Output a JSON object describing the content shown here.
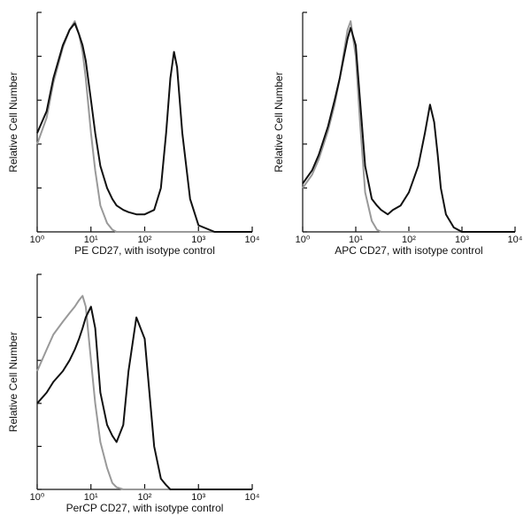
{
  "chart_data": [
    {
      "type": "line",
      "xlabel": "PE  CD27,  with isotype control",
      "ylabel": "Relative Cell Number",
      "xscale": "log",
      "x": [
        1,
        1.5,
        2,
        3,
        4,
        5,
        6,
        7,
        8,
        10,
        12,
        15,
        20,
        25,
        30,
        40,
        50,
        70,
        100,
        150,
        200,
        250,
        300,
        350,
        400,
        500,
        700,
        1000,
        2000,
        5000,
        10000
      ],
      "series": [
        {
          "color": "#999999",
          "values": [
            40,
            52,
            68,
            84,
            92,
            96,
            90,
            82,
            70,
            45,
            28,
            12,
            4,
            1,
            0,
            0,
            0,
            0,
            0,
            0,
            0,
            0,
            0,
            0,
            0,
            0,
            0,
            0,
            0,
            0,
            0
          ]
        },
        {
          "color": "#111111",
          "values": [
            45,
            55,
            70,
            85,
            92,
            95,
            90,
            85,
            78,
            60,
            45,
            30,
            20,
            15,
            12,
            10,
            9,
            8,
            8,
            10,
            20,
            45,
            70,
            82,
            75,
            45,
            15,
            3,
            0,
            0,
            0
          ]
        }
      ],
      "xlim": [
        1,
        10000
      ],
      "ylim": [
        0,
        100
      ],
      "xticks": [
        {
          "value": 1,
          "label": "10⁰"
        },
        {
          "value": 10,
          "label": "10¹"
        },
        {
          "value": 100,
          "label": "10²"
        },
        {
          "value": 1000,
          "label": "10³"
        },
        {
          "value": 10000,
          "label": "10⁴"
        }
      ],
      "yticks": [
        0,
        20,
        40,
        60,
        80,
        100
      ]
    },
    {
      "type": "line",
      "xlabel": "APC CD27, with isotype control",
      "ylabel": "Relative Cell Number",
      "xscale": "log",
      "x": [
        1,
        1.5,
        2,
        3,
        4,
        5,
        6,
        7,
        8,
        10,
        12,
        15,
        20,
        25,
        30,
        40,
        50,
        70,
        100,
        150,
        200,
        250,
        300,
        350,
        400,
        500,
        700,
        1000,
        2000,
        5000,
        10000
      ],
      "series": [
        {
          "color": "#999999",
          "values": [
            20,
            26,
            33,
            46,
            58,
            70,
            82,
            92,
            96,
            80,
            50,
            18,
            5,
            1,
            0,
            0,
            0,
            0,
            0,
            0,
            0,
            0,
            0,
            0,
            0,
            0,
            0,
            0,
            0,
            0,
            0
          ]
        },
        {
          "color": "#111111",
          "values": [
            22,
            28,
            35,
            48,
            60,
            70,
            80,
            88,
            93,
            85,
            60,
            30,
            15,
            12,
            10,
            8,
            10,
            12,
            18,
            30,
            45,
            58,
            50,
            35,
            20,
            8,
            2,
            0,
            0,
            0,
            0
          ]
        }
      ],
      "xlim": [
        1,
        10000
      ],
      "ylim": [
        0,
        100
      ],
      "xticks": [
        {
          "value": 1,
          "label": "10⁰"
        },
        {
          "value": 10,
          "label": "10¹"
        },
        {
          "value": 100,
          "label": "10²"
        },
        {
          "value": 1000,
          "label": "10³"
        },
        {
          "value": 10000,
          "label": "10⁴"
        }
      ],
      "yticks": [
        0,
        20,
        40,
        60,
        80,
        100
      ]
    },
    {
      "type": "line",
      "xlabel": "PerCP CD27, with isotype control",
      "ylabel": "Relative Cell Number",
      "xscale": "log",
      "x": [
        1,
        1.5,
        2,
        3,
        4,
        5,
        6,
        7,
        8,
        10,
        12,
        15,
        20,
        25,
        30,
        40,
        50,
        70,
        100,
        150,
        200,
        250,
        300,
        350,
        400,
        500,
        700,
        1000,
        2000,
        5000,
        10000
      ],
      "series": [
        {
          "color": "#999999",
          "values": [
            55,
            65,
            72,
            78,
            82,
            85,
            88,
            90,
            85,
            60,
            40,
            22,
            10,
            3,
            1,
            0,
            0,
            0,
            0,
            0,
            0,
            0,
            0,
            0,
            0,
            0,
            0,
            0,
            0,
            0,
            0
          ]
        },
        {
          "color": "#111111",
          "values": [
            40,
            45,
            50,
            55,
            60,
            65,
            70,
            75,
            80,
            85,
            75,
            45,
            30,
            25,
            22,
            30,
            55,
            80,
            70,
            20,
            5,
            2,
            0,
            0,
            0,
            0,
            0,
            0,
            0,
            0,
            0
          ]
        }
      ],
      "xlim": [
        1,
        10000
      ],
      "ylim": [
        0,
        100
      ],
      "xticks": [
        {
          "value": 1,
          "label": "10⁰"
        },
        {
          "value": 10,
          "label": "10¹"
        },
        {
          "value": 100,
          "label": "10²"
        },
        {
          "value": 1000,
          "label": "10³"
        },
        {
          "value": 10000,
          "label": "10⁴"
        }
      ],
      "yticks": [
        0,
        20,
        40,
        60,
        80,
        100
      ]
    }
  ]
}
